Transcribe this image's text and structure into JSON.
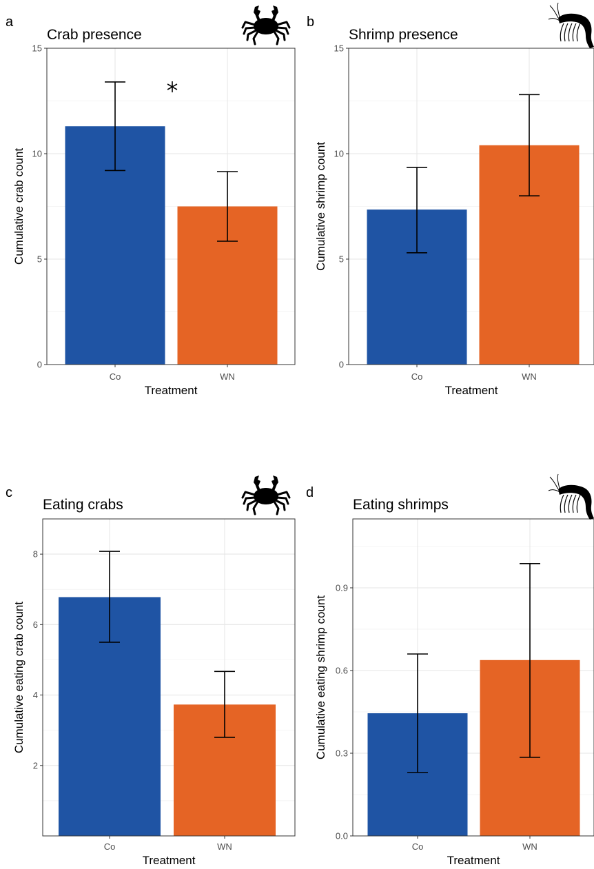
{
  "colors": {
    "Co": "#1f54a4",
    "WN": "#e56425"
  },
  "chart_data": [
    {
      "type": "bar",
      "panel": "a",
      "title": "Crab presence",
      "xlabel": "Treatment",
      "ylabel": "Cumulative crab count",
      "categories": [
        "Co",
        "WN"
      ],
      "values": [
        11.3,
        7.5
      ],
      "error_low": [
        9.2,
        5.85
      ],
      "error_high": [
        13.4,
        9.15
      ],
      "ylim": [
        0,
        15
      ],
      "yticks": [
        0,
        5,
        10,
        15
      ],
      "ytick_labels": [
        "0",
        "5",
        "10",
        "15"
      ],
      "annotation": "*",
      "icon": "crab-icon",
      "grid": true
    },
    {
      "type": "bar",
      "panel": "b",
      "title": "Shrimp presence",
      "xlabel": "Treatment",
      "ylabel": "Cumulative shrimp count",
      "categories": [
        "Co",
        "WN"
      ],
      "values": [
        7.35,
        10.4
      ],
      "error_low": [
        5.3,
        8.0
      ],
      "error_high": [
        9.35,
        12.8
      ],
      "ylim": [
        0,
        15
      ],
      "yticks": [
        0,
        5,
        10,
        15
      ],
      "ytick_labels": [
        "0",
        "5",
        "10",
        "15"
      ],
      "icon": "shrimp-icon",
      "grid": true
    },
    {
      "type": "bar",
      "panel": "c",
      "title": "Eating crabs",
      "xlabel": "Treatment",
      "ylabel": "Cumulative eating crab count",
      "categories": [
        "Co",
        "WN"
      ],
      "values": [
        6.78,
        3.73
      ],
      "error_low": [
        5.5,
        2.8
      ],
      "error_high": [
        8.08,
        4.67
      ],
      "ylim": [
        0,
        9
      ],
      "yticks": [
        2,
        4,
        6,
        8
      ],
      "ytick_labels": [
        "2",
        "4",
        "6",
        "8"
      ],
      "icon": "crab-icon",
      "grid": true
    },
    {
      "type": "bar",
      "panel": "d",
      "title": "Eating shrimps",
      "xlabel": "Treatment",
      "ylabel": "Cumulative eating shrimp count",
      "categories": [
        "Co",
        "WN"
      ],
      "values": [
        0.445,
        0.638
      ],
      "error_low": [
        0.23,
        0.285
      ],
      "error_high": [
        0.66,
        0.988
      ],
      "ylim": [
        0,
        1.15
      ],
      "yticks": [
        0,
        0.3,
        0.6,
        0.9
      ],
      "ytick_labels": [
        "0.0",
        "0.3",
        "0.6",
        "0.9"
      ],
      "icon": "shrimp-icon",
      "grid": true
    }
  ]
}
